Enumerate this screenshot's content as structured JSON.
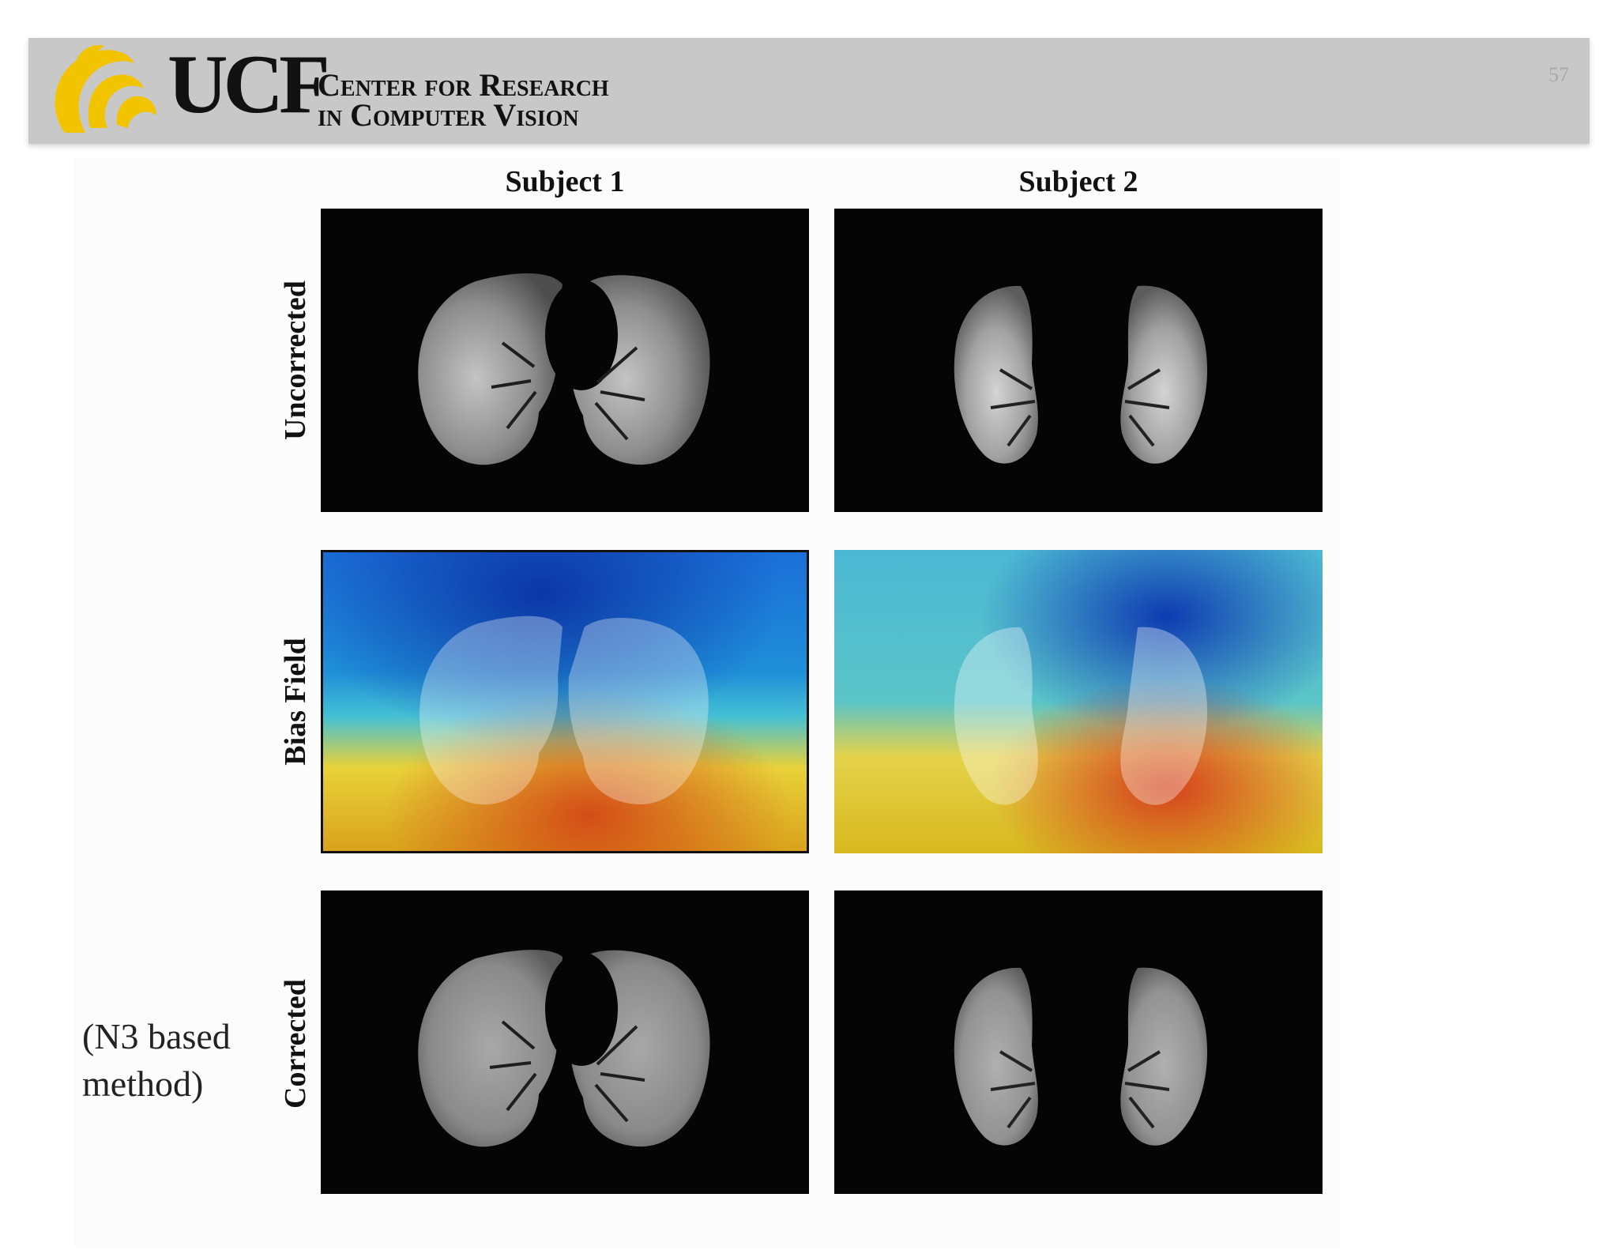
{
  "header": {
    "logo_text": "UCF",
    "center_line1": "Center for Research",
    "center_line2": "in Computer Vision",
    "slide_number": "57"
  },
  "columns": [
    "Subject 1",
    "Subject 2"
  ],
  "rows": [
    "Uncorrected",
    "Bias Field",
    "Corrected"
  ],
  "caption": [
    "(N3 based",
    "method)"
  ],
  "colors": {
    "header_bg": "#c8c8c8",
    "logo_gold": "#f2c400",
    "bias_low": "#0a3fb8",
    "bias_high": "#d93a1a"
  }
}
